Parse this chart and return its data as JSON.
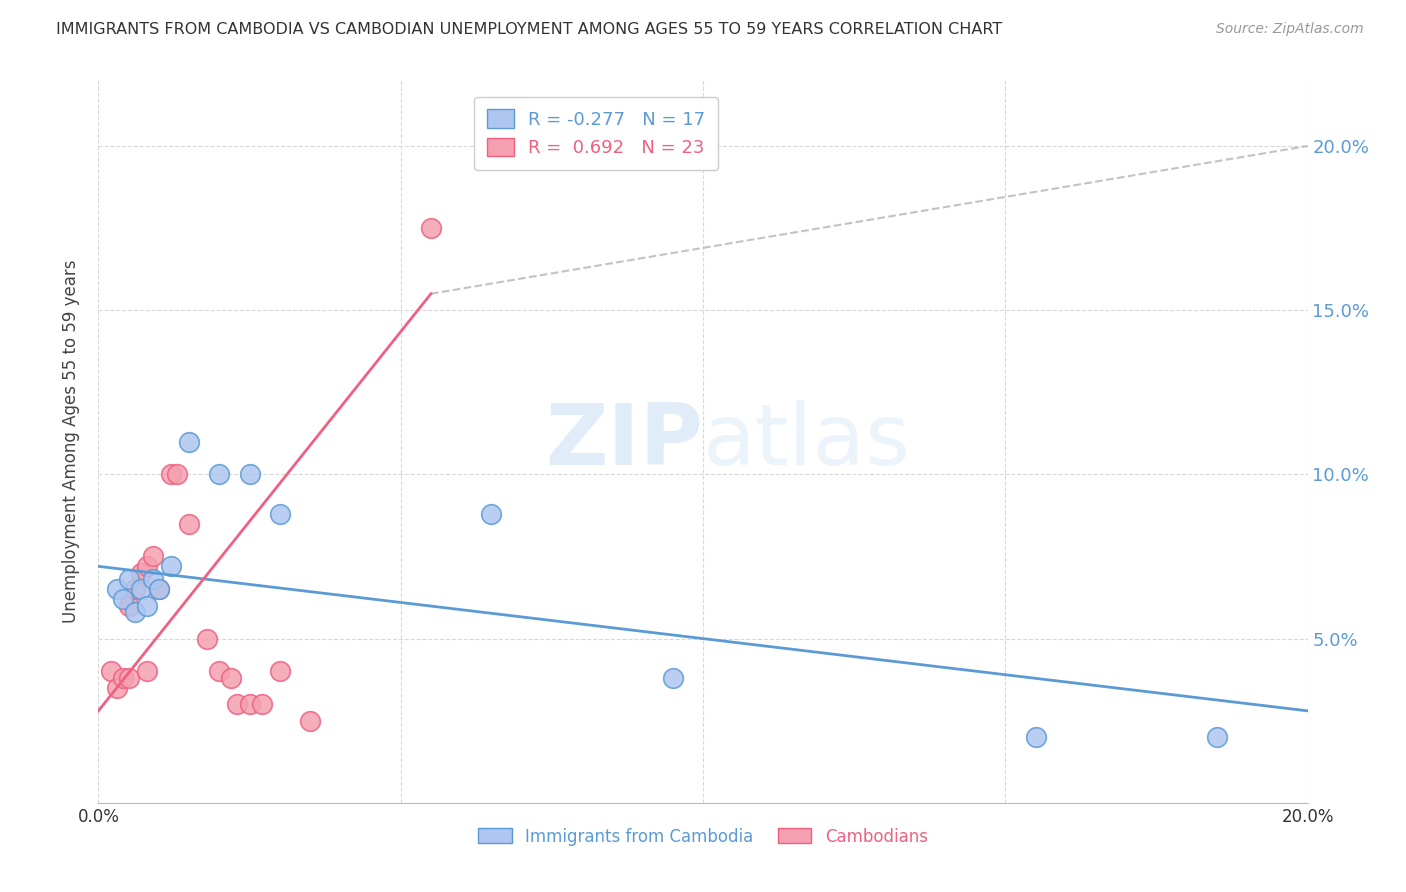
{
  "title": "IMMIGRANTS FROM CAMBODIA VS CAMBODIAN UNEMPLOYMENT AMONG AGES 55 TO 59 YEARS CORRELATION CHART",
  "source": "Source: ZipAtlas.com",
  "ylabel": "Unemployment Among Ages 55 to 59 years",
  "xlim": [
    0.0,
    0.2
  ],
  "ylim": [
    0.0,
    0.22
  ],
  "yticks": [
    0.05,
    0.1,
    0.15,
    0.2
  ],
  "ytick_labels": [
    "5.0%",
    "10.0%",
    "15.0%",
    "20.0%"
  ],
  "xticks": [
    0.0,
    0.05,
    0.1,
    0.15,
    0.2
  ],
  "xtick_labels": [
    "0.0%",
    "",
    "",
    "",
    "20.0%"
  ],
  "blue_label": "Immigrants from Cambodia",
  "pink_label": "Cambodians",
  "blue_R": "-0.277",
  "blue_N": "17",
  "pink_R": "0.692",
  "pink_N": "23",
  "blue_color": "#aec6f0",
  "pink_color": "#f4a0b0",
  "blue_line_color": "#5b9bd5",
  "pink_line_color": "#f06080",
  "watermark_zip": "ZIP",
  "watermark_atlas": "atlas",
  "background_color": "#ffffff",
  "grid_color": "#d8d8d8",
  "blue_points_x": [
    0.003,
    0.004,
    0.005,
    0.006,
    0.007,
    0.008,
    0.009,
    0.01,
    0.012,
    0.015,
    0.02,
    0.025,
    0.03,
    0.065,
    0.095,
    0.155,
    0.185
  ],
  "blue_points_y": [
    0.065,
    0.062,
    0.068,
    0.058,
    0.065,
    0.06,
    0.068,
    0.065,
    0.072,
    0.11,
    0.1,
    0.1,
    0.088,
    0.088,
    0.038,
    0.02,
    0.02
  ],
  "pink_points_x": [
    0.002,
    0.003,
    0.004,
    0.005,
    0.005,
    0.006,
    0.007,
    0.008,
    0.008,
    0.009,
    0.01,
    0.012,
    0.013,
    0.015,
    0.018,
    0.02,
    0.022,
    0.023,
    0.025,
    0.027,
    0.03,
    0.035,
    0.055
  ],
  "pink_points_y": [
    0.04,
    0.035,
    0.038,
    0.038,
    0.06,
    0.065,
    0.07,
    0.072,
    0.04,
    0.075,
    0.065,
    0.1,
    0.1,
    0.085,
    0.05,
    0.04,
    0.038,
    0.03,
    0.03,
    0.03,
    0.04,
    0.025,
    0.175
  ],
  "blue_line_x": [
    0.0,
    0.2
  ],
  "blue_line_y": [
    0.072,
    0.028
  ],
  "pink_line_x": [
    0.0,
    0.055
  ],
  "pink_line_y": [
    0.028,
    0.155
  ],
  "dash_line_x": [
    0.055,
    0.2
  ],
  "dash_line_y": [
    0.155,
    0.2
  ]
}
